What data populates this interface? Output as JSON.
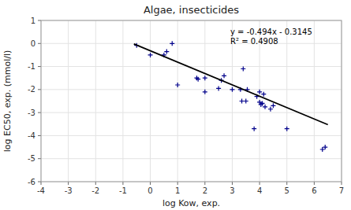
{
  "chart_data": {
    "type": "scatter",
    "title": "Algae, insecticides",
    "xlabel": "log Kow, exp.",
    "ylabel": "log EC50, exp. (mmol/l)",
    "xlim": [
      -4,
      7
    ],
    "ylim": [
      -6,
      1
    ],
    "xticks": [
      -4,
      -3,
      -2,
      -1,
      0,
      1,
      2,
      3,
      4,
      5,
      6,
      7
    ],
    "yticks": [
      -6,
      -5,
      -4,
      -3,
      -2,
      -1,
      0,
      1
    ],
    "grid": true,
    "series": [
      {
        "type": "scatter",
        "color": "#00008B",
        "marker": "plus",
        "x": [
          -0.5,
          0.0,
          0.5,
          0.6,
          0.8,
          1.0,
          1.7,
          1.75,
          2.0,
          2.0,
          2.5,
          2.6,
          2.7,
          3.0,
          3.3,
          3.35,
          3.4,
          3.5,
          3.55,
          3.8,
          3.9,
          4.0,
          4.0,
          4.05,
          4.1,
          4.15,
          4.2,
          4.4,
          4.5,
          5.0,
          6.3,
          6.4
        ],
        "values": [
          -0.08,
          -0.5,
          -0.5,
          -0.35,
          0.0,
          -1.8,
          -1.5,
          -1.55,
          -2.1,
          -1.5,
          -1.95,
          -1.6,
          -1.4,
          -2.0,
          -2.0,
          -2.5,
          -1.1,
          -2.5,
          -2.0,
          -3.7,
          -2.3,
          -2.1,
          -2.55,
          -2.65,
          -2.6,
          -2.2,
          -2.75,
          -2.85,
          -2.7,
          -3.7,
          -4.6,
          -4.5
        ]
      },
      {
        "type": "line",
        "color": "#000000",
        "line_style": "solid",
        "x": [
          -0.6,
          6.5
        ],
        "values": [
          -0.0181,
          -3.5255
        ]
      }
    ],
    "annotations": [
      "y = -0.494x - 0.3145",
      "R² = 0.4908"
    ]
  }
}
